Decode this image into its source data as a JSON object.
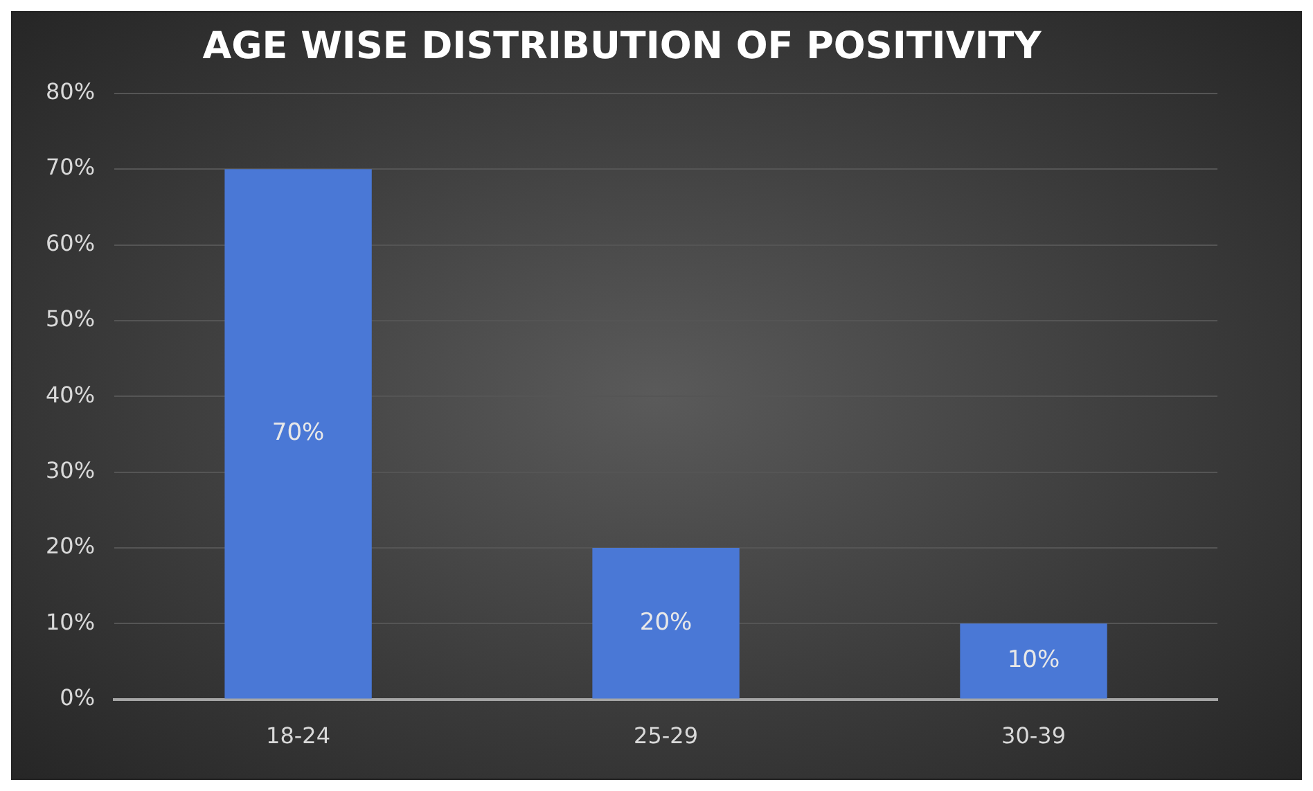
{
  "chart_data": {
    "type": "bar",
    "title": "AGE WISE DISTRIBUTION OF POSITIVITY",
    "categories": [
      "18-24",
      "25-29",
      "30-39"
    ],
    "values": [
      70,
      20,
      10
    ],
    "value_labels": [
      "70%",
      "20%",
      "10%"
    ],
    "color": "#4a78d6",
    "ylim": [
      0,
      80
    ],
    "yticks": [
      {
        "value": 0,
        "label": "0%"
      },
      {
        "value": 10,
        "label": "10%"
      },
      {
        "value": 20,
        "label": "20%"
      },
      {
        "value": 30,
        "label": "30%"
      },
      {
        "value": 40,
        "label": "40%"
      },
      {
        "value": 50,
        "label": "50%"
      },
      {
        "value": 60,
        "label": "60%"
      },
      {
        "value": 70,
        "label": "70%"
      },
      {
        "value": 80,
        "label": "80%"
      }
    ],
    "grid": "y",
    "legend": false
  }
}
